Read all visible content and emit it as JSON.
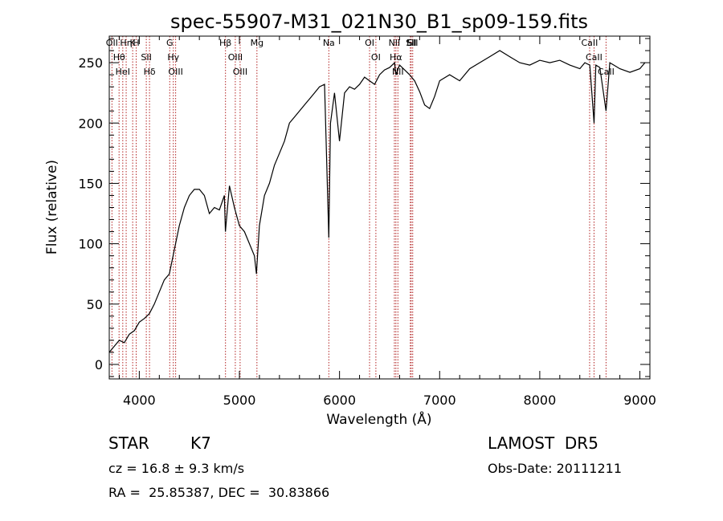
{
  "chart_data": {
    "type": "line",
    "title": "spec-55907-M31_021N30_B1_sp09-159.fits",
    "xlabel": "Wavelength (Å)",
    "ylabel": "Flux (relative)",
    "xlim": [
      3700,
      9100
    ],
    "ylim": [
      -12,
      272
    ],
    "xticks": [
      4000,
      5000,
      6000,
      7000,
      8000,
      9000
    ],
    "yticks": [
      0,
      50,
      100,
      150,
      200,
      250
    ],
    "grid": false,
    "series": [
      {
        "color": "#000000",
        "x": [
          3700,
          3750,
          3800,
          3850,
          3900,
          3950,
          4000,
          4050,
          4100,
          4150,
          4200,
          4250,
          4300,
          4350,
          4400,
          4450,
          4500,
          4550,
          4600,
          4650,
          4700,
          4750,
          4800,
          4850,
          4860,
          4900,
          4950,
          5000,
          5050,
          5100,
          5150,
          5170,
          5200,
          5250,
          5300,
          5350,
          5400,
          5450,
          5500,
          5550,
          5600,
          5650,
          5700,
          5750,
          5800,
          5850,
          5893,
          5910,
          5950,
          6000,
          6050,
          6100,
          6150,
          6200,
          6250,
          6300,
          6350,
          6400,
          6450,
          6500,
          6550,
          6563,
          6600,
          6650,
          6700,
          6750,
          6800,
          6850,
          6900,
          6950,
          7000,
          7100,
          7200,
          7300,
          7400,
          7500,
          7600,
          7700,
          7800,
          7900,
          8000,
          8100,
          8200,
          8300,
          8400,
          8450,
          8500,
          8542,
          8560,
          8600,
          8662,
          8700,
          8800,
          8900,
          9000,
          9050
        ],
        "y": [
          10,
          15,
          20,
          18,
          25,
          28,
          35,
          38,
          42,
          50,
          60,
          70,
          75,
          95,
          115,
          130,
          140,
          145,
          145,
          140,
          125,
          130,
          128,
          140,
          110,
          148,
          130,
          115,
          110,
          100,
          90,
          75,
          115,
          140,
          150,
          165,
          175,
          185,
          200,
          205,
          210,
          215,
          220,
          225,
          230,
          232,
          105,
          200,
          225,
          185,
          225,
          230,
          228,
          232,
          238,
          235,
          232,
          240,
          244,
          246,
          250,
          240,
          248,
          244,
          240,
          235,
          226,
          215,
          212,
          222,
          235,
          240,
          235,
          245,
          250,
          255,
          260,
          255,
          250,
          248,
          252,
          250,
          252,
          248,
          245,
          250,
          248,
          200,
          248,
          246,
          210,
          250,
          245,
          242,
          245,
          250
        ]
      }
    ],
    "line_markers": [
      {
        "x": 3727,
        "labels": [
          "OII"
        ]
      },
      {
        "x": 3798,
        "labels": [
          "Hθ"
        ]
      },
      {
        "x": 3835,
        "labels": [
          "HeI"
        ]
      },
      {
        "x": 3869,
        "labels": [
          "Hη"
        ]
      },
      {
        "x": 3934,
        "labels": [
          "K"
        ]
      },
      {
        "x": 3969,
        "labels": [
          "H"
        ]
      },
      {
        "x": 4070,
        "labels": [
          "SII"
        ]
      },
      {
        "x": 4102,
        "labels": [
          "Hδ"
        ]
      },
      {
        "x": 4304,
        "labels": [
          "G"
        ]
      },
      {
        "x": 4340,
        "labels": [
          "Hγ"
        ]
      },
      {
        "x": 4363,
        "labels": [
          "OIII"
        ]
      },
      {
        "x": 4861,
        "labels": [
          "Hβ"
        ]
      },
      {
        "x": 4959,
        "labels": [
          "OIII"
        ]
      },
      {
        "x": 5007,
        "labels": [
          "OIII"
        ]
      },
      {
        "x": 5175,
        "labels": [
          "Mg"
        ]
      },
      {
        "x": 5893,
        "labels": [
          "Na"
        ]
      },
      {
        "x": 6300,
        "labels": [
          "OI"
        ]
      },
      {
        "x": 6363,
        "labels": [
          "OI"
        ]
      },
      {
        "x": 6548,
        "labels": [
          "NII"
        ]
      },
      {
        "x": 6563,
        "labels": [
          "Hα"
        ]
      },
      {
        "x": 6583,
        "labels": [
          "NII"
        ]
      },
      {
        "x": 6707,
        "labels": [
          "Li"
        ]
      },
      {
        "x": 6716,
        "labels": [
          "SII"
        ]
      },
      {
        "x": 6731,
        "labels": [
          "SII"
        ]
      },
      {
        "x": 8498,
        "labels": [
          "CaII"
        ]
      },
      {
        "x": 8542,
        "labels": [
          "CaII"
        ]
      },
      {
        "x": 8662,
        "labels": [
          "CaII"
        ]
      }
    ]
  },
  "info": {
    "class_label": "STAR",
    "subclass": "K7",
    "cz": "cz = 16.8 ± 9.3 km/s",
    "radec": "RA =  25.85387, DEC =  30.83866",
    "survey": "LAMOST  DR5",
    "obs_date": "Obs-Date: 20111211"
  }
}
